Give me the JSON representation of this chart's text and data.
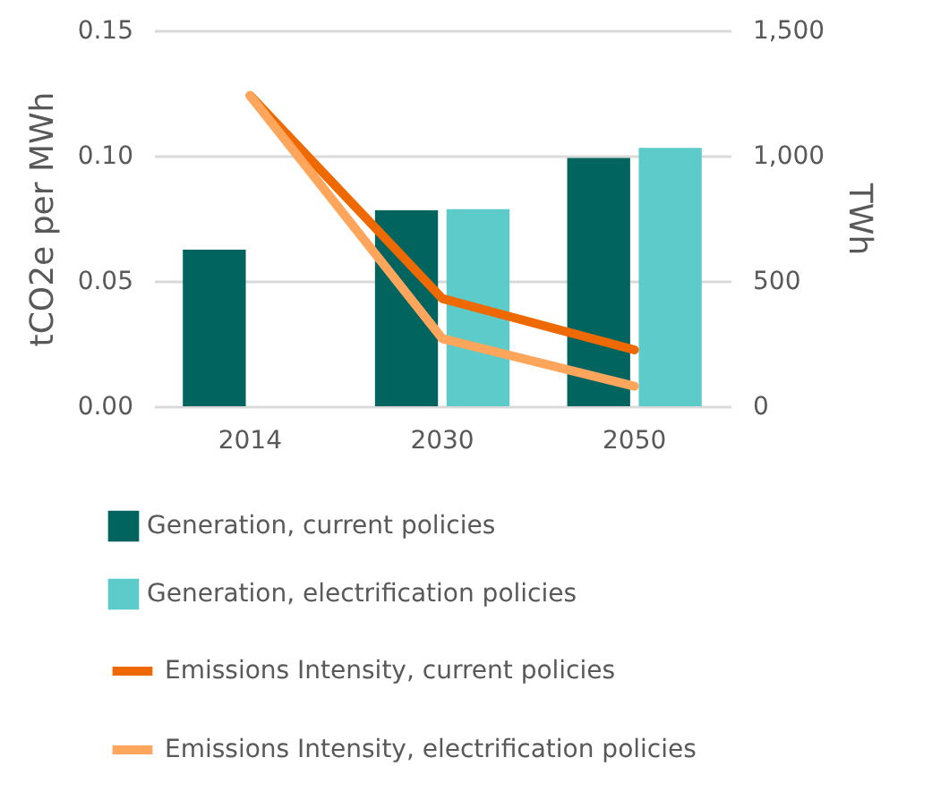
{
  "chart_data": {
    "type": "bar",
    "categories": [
      "2014",
      "2030",
      "2050"
    ],
    "ylabel": "tCO2e per MWh",
    "y2label": "TWh",
    "ylim": [
      0,
      0.15
    ],
    "yticks": [
      {
        "value": 0,
        "label": "0.00"
      },
      {
        "value": 0.05,
        "label": "0.05"
      },
      {
        "value": 0.1,
        "label": "0.10"
      },
      {
        "value": 0.15,
        "label": "0.15"
      }
    ],
    "y2lim": [
      0,
      1500
    ],
    "y2ticks": [
      0,
      500,
      {
        "value": 1000,
        "label": "1,000"
      },
      {
        "value": 1500,
        "label": "1,500"
      }
    ],
    "grid": "y",
    "legend": "bottom",
    "series": [
      {
        "name": "Generation, current policies",
        "type": "bar",
        "axis": "y2",
        "color": "#02645f",
        "values": [
          625,
          782,
          991
        ]
      },
      {
        "name": "Generation, electrification policies",
        "type": "bar",
        "axis": "y2",
        "color": "#5ccbc9",
        "values": [
          null,
          787,
          1031
        ]
      },
      {
        "name": "Emissions Intensity, current policies",
        "type": "line",
        "axis": "y",
        "color": "#ee6a00",
        "values": [
          0.124,
          0.043,
          0.0225
        ]
      },
      {
        "name": "Emissions Intensity, electrification policies",
        "type": "line",
        "axis": "y",
        "color": "#ffa55c",
        "values": [
          0.124,
          0.027,
          0.008
        ]
      }
    ]
  }
}
